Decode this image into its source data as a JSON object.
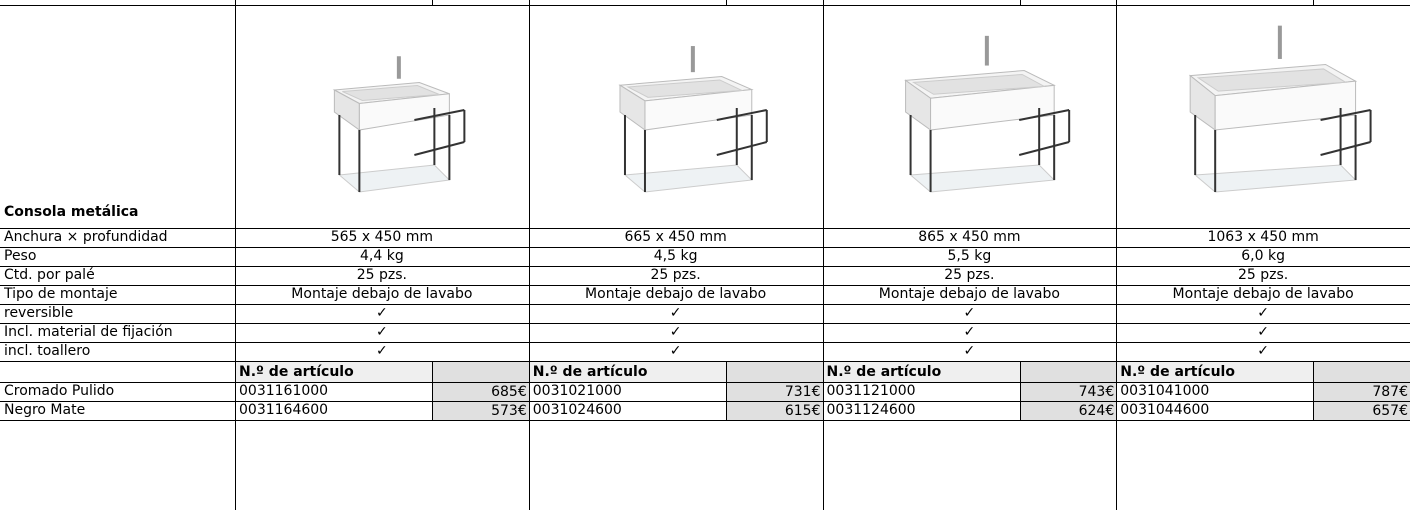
{
  "table": {
    "title": "Consola metálica",
    "spec_rows": [
      {
        "label": "Anchura × profundidad",
        "values": [
          "565 x 450 mm",
          "665 x 450 mm",
          "865 x 450 mm",
          "1063 x 450 mm"
        ]
      },
      {
        "label": "Peso",
        "values": [
          "4,4 kg",
          "4,5 kg",
          "5,5 kg",
          "6,0 kg"
        ]
      },
      {
        "label": "Ctd. por palé",
        "values": [
          "25 pzs.",
          "25 pzs.",
          "25 pzs.",
          "25 pzs."
        ]
      },
      {
        "label": "Tipo de montaje",
        "values": [
          "Montaje debajo de lavabo",
          "Montaje debajo de lavabo",
          "Montaje debajo de lavabo",
          "Montaje debajo de lavabo"
        ]
      },
      {
        "label": "reversible",
        "values": [
          "✓",
          "✓",
          "✓",
          "✓"
        ]
      },
      {
        "label": "Incl. material de fijación",
        "values": [
          "✓",
          "✓",
          "✓",
          "✓"
        ]
      },
      {
        "label": "incl. toallero",
        "values": [
          "✓",
          "✓",
          "✓",
          "✓"
        ]
      }
    ],
    "article_header": "N.º de artículo",
    "finishes": [
      {
        "label": "Cromado Pulido",
        "articles": [
          {
            "number": "0031161000",
            "price": "685€"
          },
          {
            "number": "0031021000",
            "price": "731€"
          },
          {
            "number": "0031121000",
            "price": "743€"
          },
          {
            "number": "0031041000",
            "price": "787€"
          }
        ]
      },
      {
        "label": "Negro Mate",
        "articles": [
          {
            "number": "0031164600",
            "price": "573€"
          },
          {
            "number": "0031024600",
            "price": "615€"
          },
          {
            "number": "0031124600",
            "price": "624€"
          },
          {
            "number": "0031044600",
            "price": "657€"
          }
        ]
      }
    ]
  }
}
